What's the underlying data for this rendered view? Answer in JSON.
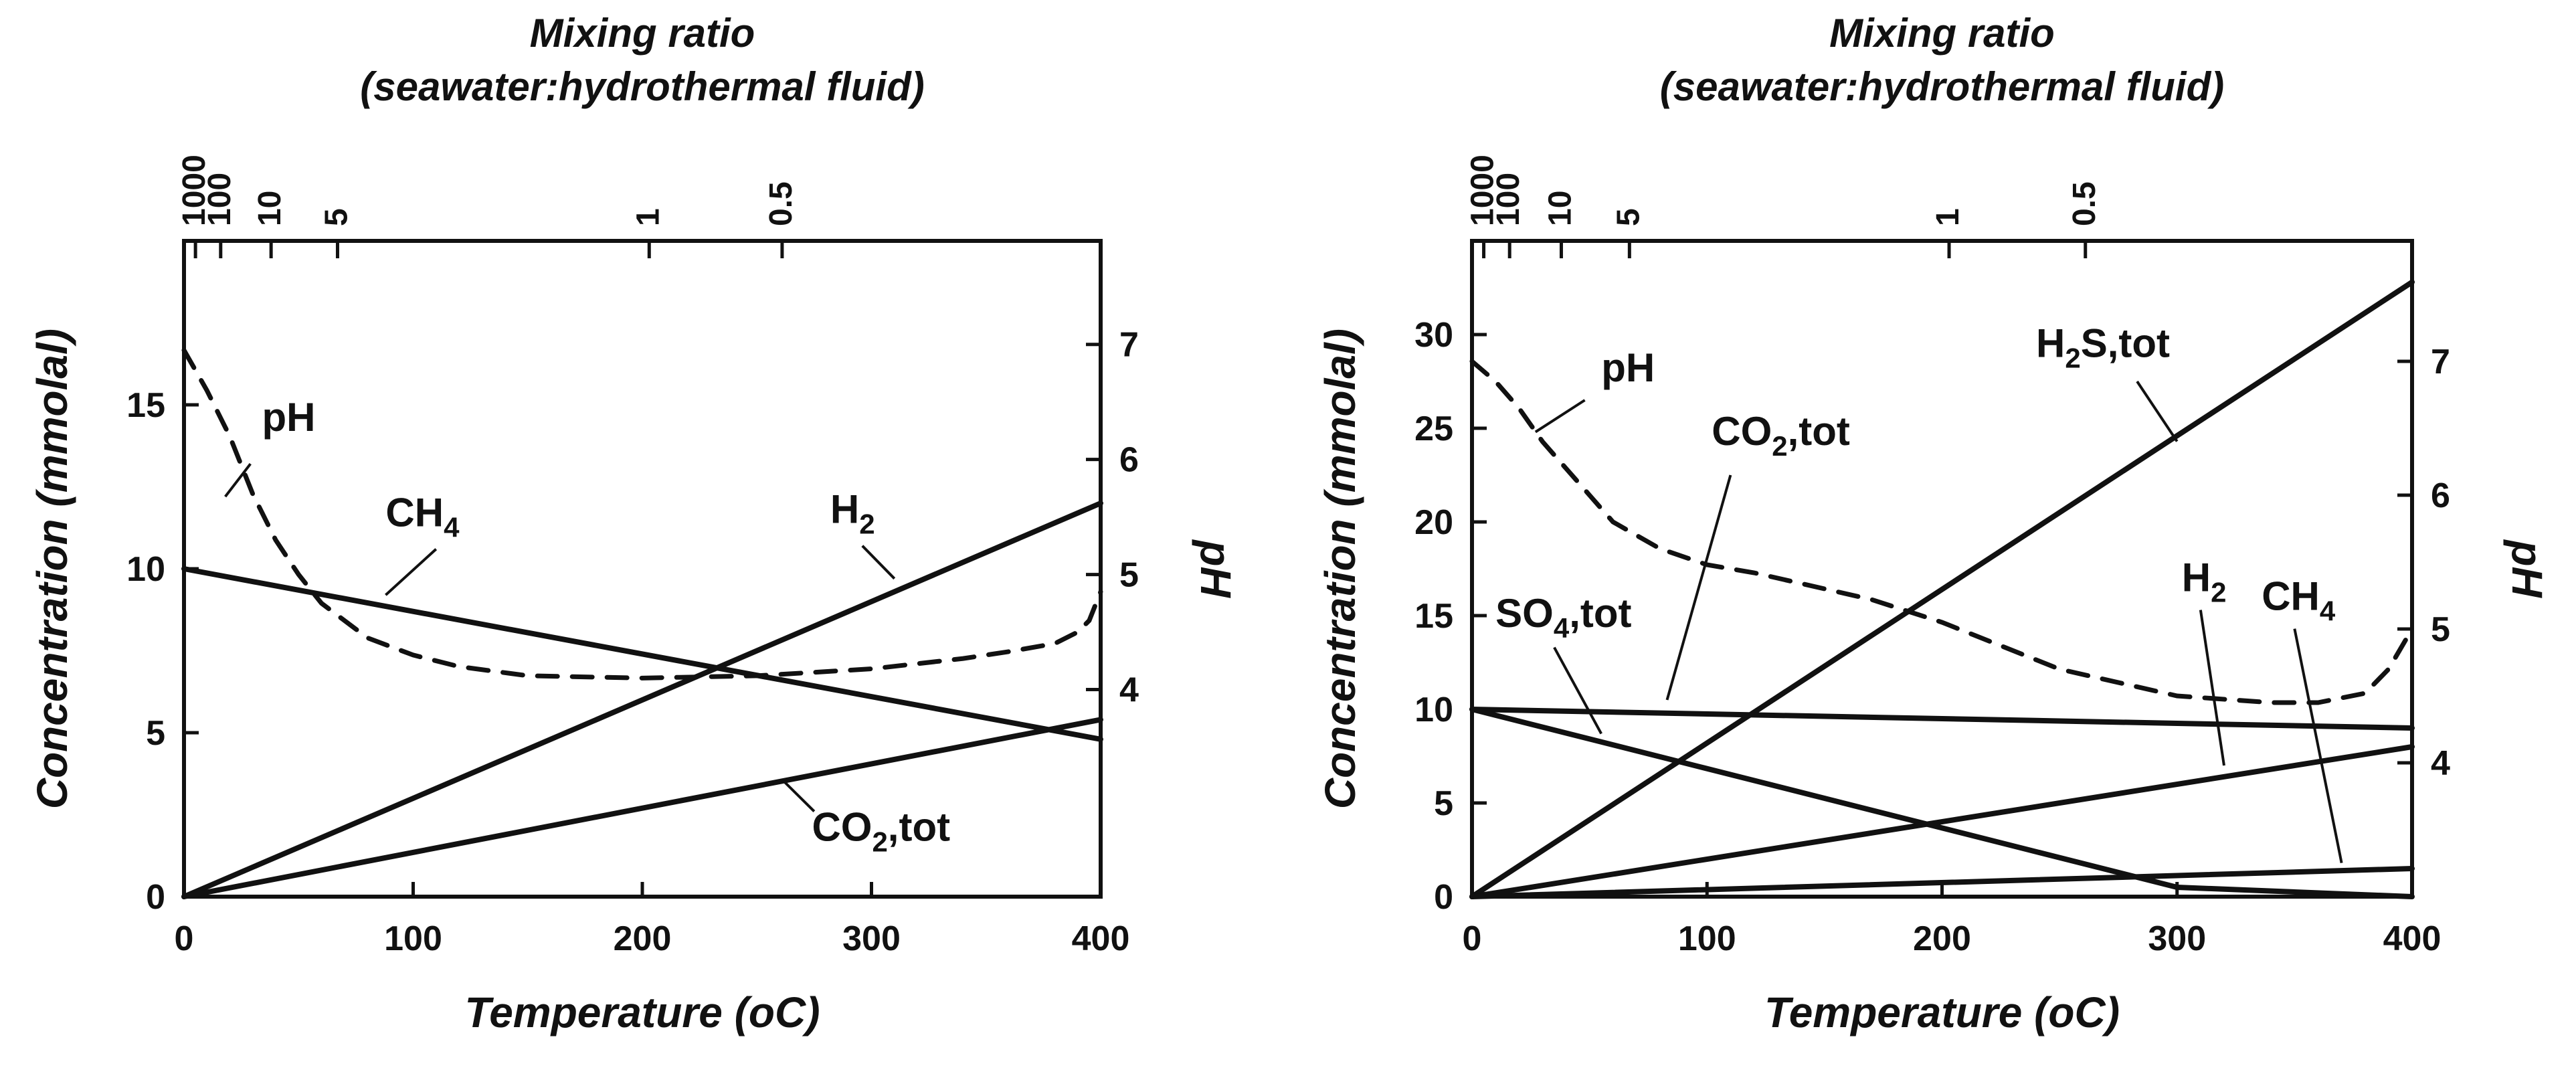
{
  "chart_data": [
    {
      "type": "line",
      "xlabel": "Temperature (oC)",
      "ylabel": "Concentration (mmolal)",
      "y2label": "pH",
      "toplabel_line1": "Mixing ratio",
      "toplabel_line2": "(seawater:hydrothermal fluid)",
      "xlim": [
        0,
        400
      ],
      "ylim": [
        0,
        20
      ],
      "y2lim": [
        2.2,
        7.9
      ],
      "xticks": [
        "0",
        "100",
        "200",
        "300",
        "400"
      ],
      "yticks": [
        "0",
        "5",
        "10",
        "15"
      ],
      "y2ticks": [
        "4",
        "5",
        "6",
        "7"
      ],
      "top_ticks": [
        {
          "label": "1000",
          "t": 5
        },
        {
          "label": "100",
          "t": 16
        },
        {
          "label": "10",
          "t": 38
        },
        {
          "label": "5",
          "t": 67
        },
        {
          "label": "1",
          "t": 203
        },
        {
          "label": "0.5",
          "t": 261
        }
      ],
      "grid": false,
      "series": [
        {
          "name": "CH4",
          "axis": "left",
          "dashed": false,
          "x": [
            0,
            400
          ],
          "y": [
            10,
            4.8
          ]
        },
        {
          "name": "H2",
          "axis": "left",
          "dashed": false,
          "x": [
            0,
            400
          ],
          "y": [
            0,
            12
          ]
        },
        {
          "name": "CO2,tot",
          "axis": "left",
          "dashed": false,
          "x": [
            0,
            400
          ],
          "y": [
            0,
            5.4
          ]
        },
        {
          "name": "pH",
          "axis": "right",
          "dashed": true,
          "x": [
            0,
            10,
            20,
            30,
            40,
            50,
            60,
            80,
            100,
            120,
            150,
            200,
            250,
            300,
            340,
            360,
            380,
            390,
            395,
            400
          ],
          "y": [
            6.95,
            6.6,
            6.2,
            5.7,
            5.3,
            5.0,
            4.75,
            4.45,
            4.3,
            4.2,
            4.12,
            4.1,
            4.12,
            4.18,
            4.27,
            4.33,
            4.4,
            4.5,
            4.6,
            4.85
          ]
        }
      ],
      "annotations": [
        {
          "text": "pH",
          "sub": "",
          "rest": "",
          "x": 34,
          "y": 14.2,
          "lx1": 29,
          "ly1": 13.2,
          "lx2": 18,
          "ly2": 12.2
        },
        {
          "text": "CH",
          "sub": "4",
          "rest": "",
          "x": 88,
          "y": 11.3,
          "lx1": 110,
          "ly1": 10.6,
          "lx2": 88,
          "ly2": 9.2
        },
        {
          "text": "H",
          "sub": "2",
          "rest": "",
          "x": 282,
          "y": 11.4,
          "lx1": 296,
          "ly1": 10.7,
          "lx2": 310,
          "ly2": 9.7
        },
        {
          "text": "CO",
          "sub": "2",
          "rest": ",tot",
          "x": 274,
          "y": 1.7,
          "lx1": 275,
          "ly1": 2.6,
          "lx2": 262,
          "ly2": 3.5
        }
      ]
    },
    {
      "type": "line",
      "xlabel": "Temperature (oC)",
      "ylabel": "Concentration (mmolal)",
      "y2label": "pH",
      "toplabel_line1": "Mixing ratio",
      "toplabel_line2": "(seawater:hydrothermal fluid)",
      "xlim": [
        0,
        400
      ],
      "ylim": [
        0,
        35
      ],
      "y2lim": [
        3.0,
        7.9
      ],
      "xticks": [
        "0",
        "100",
        "200",
        "300",
        "400"
      ],
      "yticks": [
        "0",
        "5",
        "10",
        "15",
        "20",
        "25",
        "30"
      ],
      "y2ticks": [
        "4",
        "5",
        "6",
        "7"
      ],
      "top_ticks": [
        {
          "label": "1000",
          "t": 5
        },
        {
          "label": "100",
          "t": 16
        },
        {
          "label": "10",
          "t": 38
        },
        {
          "label": "5",
          "t": 67
        },
        {
          "label": "1",
          "t": 203
        },
        {
          "label": "0.5",
          "t": 261
        }
      ],
      "grid": false,
      "series": [
        {
          "name": "H2S,tot",
          "axis": "left",
          "dashed": false,
          "x": [
            0,
            400
          ],
          "y": [
            0,
            32.8
          ]
        },
        {
          "name": "CO2,tot",
          "axis": "left",
          "dashed": false,
          "x": [
            0,
            400
          ],
          "y": [
            10,
            9
          ]
        },
        {
          "name": "SO4,tot",
          "axis": "left",
          "dashed": false,
          "x": [
            0,
            300,
            400
          ],
          "y": [
            10,
            0.5,
            0
          ]
        },
        {
          "name": "H2",
          "axis": "left",
          "dashed": false,
          "x": [
            0,
            400
          ],
          "y": [
            0,
            8
          ]
        },
        {
          "name": "CH4",
          "axis": "left",
          "dashed": false,
          "x": [
            0,
            400
          ],
          "y": [
            0,
            1.5
          ]
        },
        {
          "name": "pH",
          "axis": "right",
          "dashed": true,
          "x": [
            0,
            10,
            20,
            30,
            40,
            50,
            60,
            80,
            100,
            120,
            150,
            170,
            200,
            250,
            300,
            340,
            360,
            380,
            390,
            400
          ],
          "y": [
            7.0,
            6.85,
            6.65,
            6.4,
            6.2,
            6.0,
            5.8,
            5.6,
            5.48,
            5.42,
            5.3,
            5.22,
            5.05,
            4.7,
            4.5,
            4.45,
            4.45,
            4.52,
            4.7,
            5.0
          ]
        }
      ],
      "annotations": [
        {
          "text": "pH",
          "sub": "",
          "rest": "",
          "x": 55,
          "y": 27.5,
          "lx1": 48,
          "ly1": 26.5,
          "lx2": 27,
          "ly2": 24.8
        },
        {
          "text": "H",
          "sub": "2",
          "rest": "S,tot",
          "x": 240,
          "y": 28.8,
          "lx1": 283,
          "ly1": 27.5,
          "lx2": 300,
          "ly2": 24.3
        },
        {
          "text": "CO",
          "sub": "2",
          "rest": ",tot",
          "x": 102,
          "y": 24.1,
          "lx1": 110,
          "ly1": 22.5,
          "lx2": 83,
          "ly2": 10.5
        },
        {
          "text": "SO",
          "sub": "4",
          "rest": ",tot",
          "x": 10,
          "y": 14.4,
          "lx1": 35,
          "ly1": 13.3,
          "lx2": 55,
          "ly2": 8.7
        },
        {
          "text": "H",
          "sub": "2",
          "rest": "",
          "x": 302,
          "y": 16.3,
          "lx1": 310,
          "ly1": 15.3,
          "lx2": 320,
          "ly2": 7.0
        },
        {
          "text": "CH",
          "sub": "4",
          "rest": "",
          "x": 336,
          "y": 15.3,
          "lx1": 350,
          "ly1": 14.3,
          "lx2": 370,
          "ly2": 1.8
        }
      ]
    }
  ]
}
